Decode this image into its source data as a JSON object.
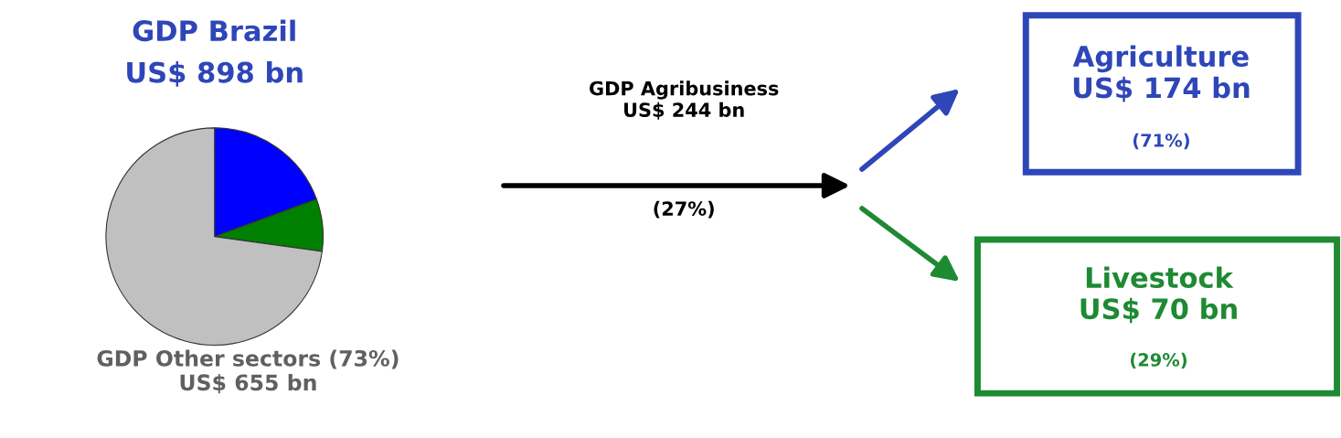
{
  "chart_data": {
    "type": "pie",
    "title": "GDP Brazil",
    "subtitle": "US$ 898 bn",
    "categories": [
      null,
      null,
      null
    ],
    "values": [
      19.4,
      7.8,
      72.8
    ],
    "colors": [
      "#0000ff",
      "#008000",
      "#c0c0c0"
    ],
    "annotations": [
      "GDP Other sectors (73%)\nUS$ 655 bn",
      "GDP Agribusiness\nUS$ 244 bn",
      "(27%)",
      "Agriculture\nUS$ 174 bn",
      "(71%)",
      "Livestock\nUS$ 70 bn",
      "(29%)"
    ]
  }
}
